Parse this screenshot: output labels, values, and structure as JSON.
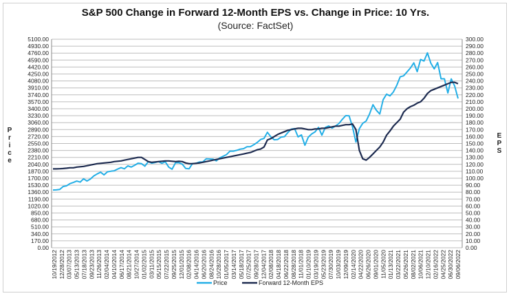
{
  "chart_data": {
    "type": "line",
    "title": "S&P 500 Change in Forward 12-Month EPS vs. Change in Price: 10 Yrs.",
    "subtitle": "(Source: FactSet)",
    "ylabel_left": "Price",
    "ylabel_right": "EPS",
    "ylim_left": [
      0,
      5100
    ],
    "ylim_right": [
      0,
      300
    ],
    "ytick_step_left": 170,
    "ytick_step_right": 10,
    "grid": true,
    "legend_position": "bottom",
    "colors": {
      "Price": "#22aee6",
      "Forward 12-Month EPS": "#1c2a4f"
    },
    "x_tick_labels": [
      "10/19/2012",
      "12/28/2012",
      "03/07/2013",
      "05/13/2013",
      "07/18/2013",
      "09/23/2013",
      "11/26/2013",
      "02/04/2014",
      "04/10/2014",
      "06/17/2014",
      "08/21/2014",
      "10/27/2014",
      "01/02/2015",
      "03/11/2015",
      "05/15/2015",
      "07/22/2015",
      "09/25/2015",
      "12/01/2015",
      "02/08/2016",
      "04/14/2016",
      "06/20/2016",
      "08/24/2016",
      "10/28/2016",
      "01/05/2017",
      "03/14/2017",
      "05/18/2017",
      "07/25/2017",
      "09/28/2017",
      "12/04/2017",
      "02/08/2018",
      "04/18/2018",
      "06/22/2018",
      "08/28/2018",
      "11/01/2018",
      "01/10/2019",
      "03/19/2019",
      "05/23/2019",
      "07/30/2019",
      "10/03/2019",
      "12/09/2019",
      "02/14/2020",
      "04/22/2020",
      "06/26/2020",
      "09/01/2020",
      "11/05/2020",
      "01/13/2021",
      "03/22/2021",
      "05/26/2021",
      "08/02/2021",
      "10/06/2021",
      "12/10/2021",
      "02/16/2022",
      "04/25/2022",
      "06/30/2022",
      "09/06/2022"
    ],
    "x_start_month": "2012-10",
    "series": [
      {
        "name": "Price",
        "axis": "left",
        "values": [
          1412,
          1416,
          1426,
          1498,
          1515,
          1569,
          1598,
          1631,
          1606,
          1686,
          1633,
          1682,
          1757,
          1806,
          1848,
          1783,
          1859,
          1872,
          1884,
          1924,
          1960,
          1931,
          2003,
          1972,
          2018,
          2068,
          2059,
          1995,
          2105,
          2068,
          2086,
          2107,
          2063,
          2104,
          1972,
          1920,
          2079,
          2080,
          2044,
          1940,
          1932,
          2060,
          2065,
          2097,
          2099,
          2174,
          2171,
          2168,
          2126,
          2199,
          2239,
          2279,
          2364,
          2363,
          2384,
          2412,
          2423,
          2470,
          2472,
          2519,
          2575,
          2648,
          2674,
          2824,
          2714,
          2641,
          2648,
          2705,
          2718,
          2816,
          2902,
          2914,
          2712,
          2760,
          2507,
          2704,
          2784,
          2834,
          2946,
          2752,
          2942,
          2980,
          2926,
          2977,
          3038,
          3141,
          3231,
          3226,
          2954,
          2585,
          2912,
          3044,
          3100,
          3271,
          3500,
          3363,
          3270,
          3622,
          3756,
          3714,
          3811,
          3973,
          4181,
          4204,
          4298,
          4395,
          4523,
          4308,
          4605,
          4567,
          4766,
          4516,
          4374,
          4530,
          4132,
          4132,
          3785,
          4130,
          3955,
          3650
        ]
      },
      {
        "name": "Forward 12-Month EPS",
        "axis": "right",
        "values": [
          113.5,
          113.5,
          113.7,
          114,
          114.5,
          115,
          115,
          116,
          116.5,
          117,
          118,
          119,
          120,
          121,
          121.5,
          122,
          122.5,
          123,
          124,
          124.5,
          125,
          126,
          127,
          128,
          129,
          130,
          130,
          127,
          124,
          123,
          123.5,
          124,
          124.5,
          125,
          125,
          124.5,
          124,
          124.5,
          124,
          122,
          121,
          121,
          121.5,
          122,
          123,
          124,
          125,
          126,
          127,
          128,
          129,
          130,
          131,
          132,
          133,
          134,
          135,
          136,
          137,
          139,
          141,
          142,
          145,
          155,
          157,
          160,
          163,
          165,
          167,
          169,
          170,
          171,
          172,
          172,
          171,
          170,
          170,
          171,
          171,
          172,
          172,
          173,
          174,
          175,
          175,
          176,
          177,
          177,
          178,
          170,
          140,
          128,
          126,
          130,
          135,
          140,
          145,
          152,
          162,
          168,
          175,
          180,
          185,
          195,
          200,
          203,
          205,
          208,
          210,
          215,
          222,
          226,
          228,
          230,
          232,
          234,
          236,
          238,
          238,
          236
        ]
      }
    ]
  }
}
